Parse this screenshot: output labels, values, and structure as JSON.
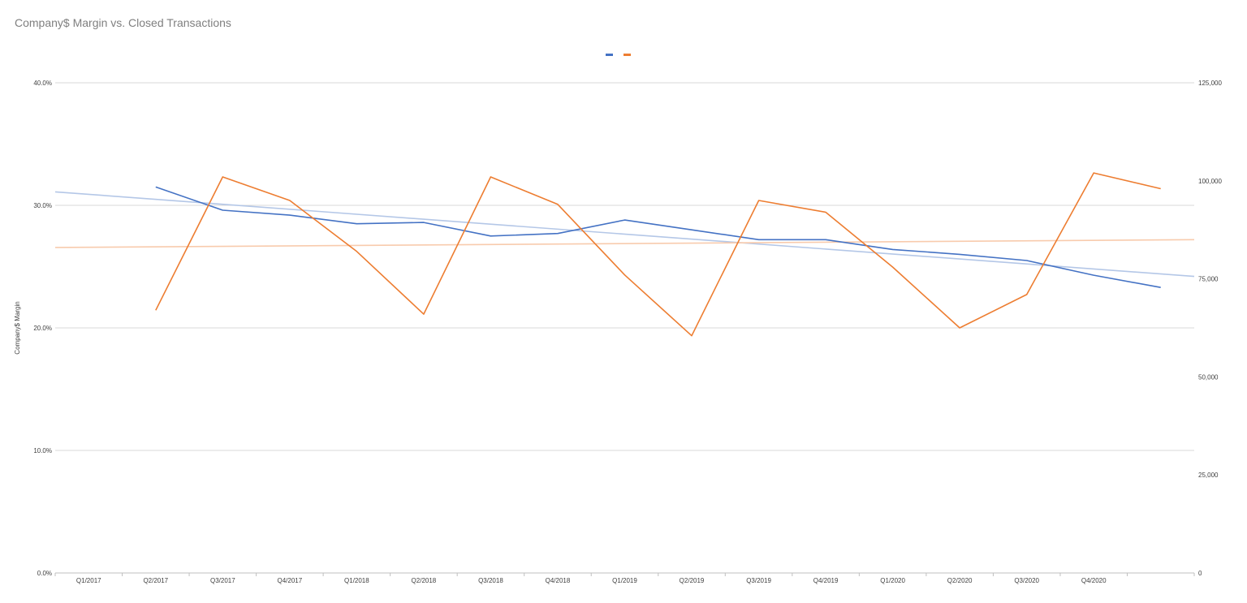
{
  "title": "Company$ Margin vs. Closed Transactions",
  "colors": {
    "series_margin": "#4472c4",
    "series_transactions": "#ed7d31",
    "trend_margin": "#b4c7e7",
    "trend_transactions": "#f8cbad",
    "gridline": "#d9d9d9",
    "axis_text": "#404040"
  },
  "chart_data": {
    "type": "line",
    "title": "Company$ Margin vs. Closed Transactions",
    "legend_position": "top-center",
    "grid": true,
    "categories": [
      "Q1/2017",
      "Q2/2017",
      "Q3/2017",
      "Q4/2017",
      "Q1/2018",
      "Q2/2018",
      "Q3/2018",
      "Q4/2018",
      "Q1/2019",
      "Q2/2019",
      "Q3/2019",
      "Q4/2019",
      "Q1/2020",
      "Q2/2020",
      "Q3/2020",
      "Q4/2020",
      ""
    ],
    "y_left": {
      "label": "Company$ Margin",
      "range": [
        0,
        0.4
      ],
      "ticks": [
        "0.0%",
        "10.0%",
        "20.0%",
        "30.0%",
        "40.0%"
      ]
    },
    "y_right": {
      "label": "",
      "range": [
        0,
        125000
      ],
      "ticks": [
        "0",
        "25,000",
        "50,000",
        "75,000",
        "100,000",
        "125,000"
      ]
    },
    "series": [
      {
        "axis": "left",
        "values": [
          null,
          0.315,
          0.296,
          0.292,
          0.285,
          0.286,
          0.275,
          0.277,
          0.288,
          0.28,
          0.272,
          0.272,
          0.264,
          0.26,
          0.255,
          0.243,
          0.233
        ]
      },
      {
        "axis": "right",
        "values": [
          null,
          67000,
          101000,
          95000,
          82000,
          66000,
          101000,
          94000,
          76000,
          60500,
          95000,
          92000,
          78000,
          62500,
          71000,
          102000,
          98000
        ]
      }
    ],
    "trendlines": [
      {
        "axis": "left",
        "start": 0.311,
        "end": 0.242
      },
      {
        "axis": "right",
        "start": 83000,
        "end": 85000
      }
    ]
  }
}
